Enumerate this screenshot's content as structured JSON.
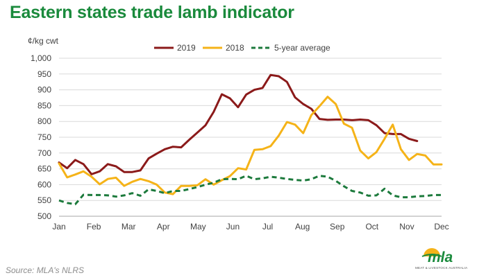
{
  "header": {
    "title": "Eastern states trade lamb indicator"
  },
  "source": "Source: MLA's NLRS",
  "logo": {
    "name": "mla",
    "tagline": "MEAT & LIVESTOCK AUSTRALIA"
  },
  "chart_data": {
    "type": "line",
    "title": "Eastern states trade lamb indicator",
    "ylabel": "¢/kg cwt",
    "xlabel": "",
    "ylim": [
      500,
      1000
    ],
    "yticks": [
      500,
      550,
      600,
      650,
      700,
      750,
      800,
      850,
      900,
      950,
      1000
    ],
    "ytick_labels": [
      "500",
      "550",
      "600",
      "650",
      "700",
      "750",
      "800",
      "850",
      "900",
      "950",
      "1,000"
    ],
    "x_categories": [
      "Jan",
      "Feb",
      "Mar",
      "Apr",
      "May",
      "Jun",
      "Jul",
      "Aug",
      "Sep",
      "Oct",
      "Nov",
      "Dec"
    ],
    "x_unit": "week",
    "xlim": [
      1,
      48
    ],
    "grid": true,
    "legend_position": "top",
    "series": [
      {
        "name": "2019",
        "color": "#8b1a1a",
        "style": "solid",
        "x": [
          1,
          2,
          3,
          4,
          5,
          6,
          7,
          8,
          9,
          10,
          11,
          12,
          13,
          14,
          15,
          16,
          17,
          18,
          19,
          20,
          21,
          22,
          23,
          24,
          25,
          26,
          27,
          28,
          29,
          30,
          31,
          32,
          33,
          34,
          35,
          36,
          37,
          38,
          39,
          40,
          41,
          42,
          43,
          44,
          45
        ],
        "values": [
          670,
          652,
          678,
          665,
          633,
          642,
          665,
          658,
          640,
          640,
          645,
          683,
          698,
          712,
          720,
          718,
          742,
          765,
          788,
          830,
          886,
          873,
          845,
          885,
          900,
          906,
          947,
          943,
          925,
          876,
          855,
          840,
          808,
          805,
          806,
          806,
          804,
          806,
          804,
          788,
          763,
          760,
          760,
          745,
          738
        ]
      },
      {
        "name": "2018",
        "color": "#f5b318",
        "style": "solid",
        "x": [
          1,
          2,
          3,
          4,
          5,
          6,
          7,
          8,
          9,
          10,
          11,
          12,
          13,
          14,
          15,
          16,
          17,
          18,
          19,
          20,
          21,
          22,
          23,
          24,
          25,
          26,
          27,
          28,
          29,
          30,
          31,
          32,
          33,
          34,
          35,
          36,
          37,
          38,
          39,
          40,
          41,
          42,
          43,
          44,
          45,
          46,
          47,
          48
        ],
        "values": [
          667,
          623,
          632,
          642,
          625,
          601,
          618,
          622,
          596,
          609,
          618,
          611,
          600,
          575,
          570,
          596,
          596,
          598,
          617,
          600,
          614,
          627,
          652,
          648,
          710,
          712,
          722,
          755,
          798,
          790,
          763,
          820,
          848,
          878,
          855,
          793,
          780,
          708,
          683,
          703,
          745,
          790,
          712,
          678,
          697,
          692,
          664,
          664
        ]
      },
      {
        "name": "5-year average",
        "color": "#1c7a3c",
        "style": "dashed",
        "x": [
          1,
          2,
          3,
          4,
          5,
          6,
          7,
          8,
          9,
          10,
          11,
          12,
          13,
          14,
          15,
          16,
          17,
          18,
          19,
          20,
          21,
          22,
          23,
          24,
          25,
          26,
          27,
          28,
          29,
          30,
          31,
          32,
          33,
          34,
          35,
          36,
          37,
          38,
          39,
          40,
          41,
          42,
          43,
          44,
          45,
          46,
          47,
          48
        ],
        "values": [
          550,
          542,
          538,
          568,
          567,
          567,
          566,
          562,
          566,
          573,
          565,
          585,
          580,
          573,
          580,
          580,
          586,
          592,
          600,
          606,
          617,
          618,
          617,
          628,
          617,
          620,
          625,
          622,
          618,
          615,
          613,
          617,
          628,
          625,
          612,
          595,
          580,
          575,
          565,
          566,
          587,
          566,
          560,
          560,
          563,
          564,
          567,
          567
        ]
      }
    ]
  }
}
